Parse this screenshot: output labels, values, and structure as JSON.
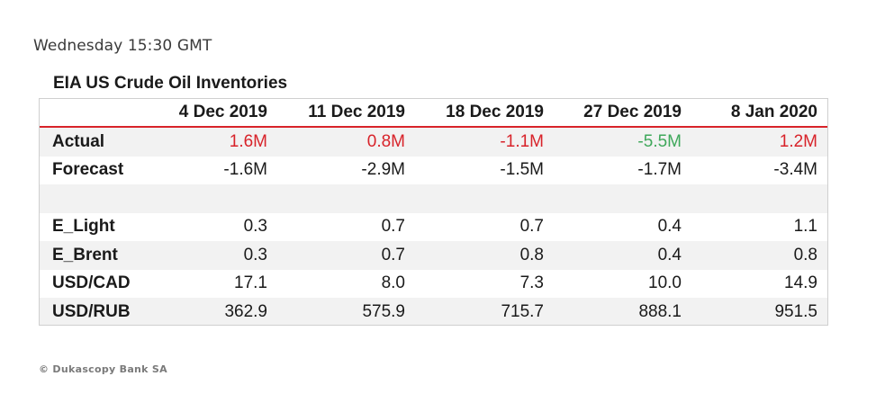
{
  "timestamp": "Wednesday 15:30 GMT",
  "table_title": "EIA US Crude Oil Inventories",
  "columns": [
    "",
    "4 Dec 2019",
    "11 Dec 2019",
    "18 Dec 2019",
    "27 Dec 2019",
    "8 Jan 2020"
  ],
  "rows": [
    {
      "label": "Actual",
      "values": [
        "1.6M",
        "0.8M",
        "-1.1M",
        "-5.5M",
        "1.2M"
      ],
      "colors": [
        "up",
        "up",
        "up",
        "down",
        "up"
      ]
    },
    {
      "label": "Forecast",
      "values": [
        "-1.6M",
        "-2.9M",
        "-1.5M",
        "-1.7M",
        "-3.4M"
      ]
    },
    {
      "label": "",
      "values": [
        "",
        "",
        "",
        "",
        ""
      ]
    },
    {
      "label": "E_Light",
      "values": [
        "0.3",
        "0.7",
        "0.7",
        "0.4",
        "1.1"
      ]
    },
    {
      "label": "E_Brent",
      "values": [
        "0.3",
        "0.7",
        "0.8",
        "0.4",
        "0.8"
      ]
    },
    {
      "label": "USD/CAD",
      "values": [
        "17.1",
        "8.0",
        "7.3",
        "10.0",
        "14.9"
      ]
    },
    {
      "label": "USD/RUB",
      "values": [
        "362.9",
        "575.9",
        "715.7",
        "888.1",
        "951.5"
      ]
    }
  ],
  "colors": {
    "positive": "#d8232a",
    "negative": "#3fa85b",
    "header_rule": "#d8232a",
    "row_shade": "#f2f2f2"
  },
  "footer": "© Dukascopy Bank SA"
}
